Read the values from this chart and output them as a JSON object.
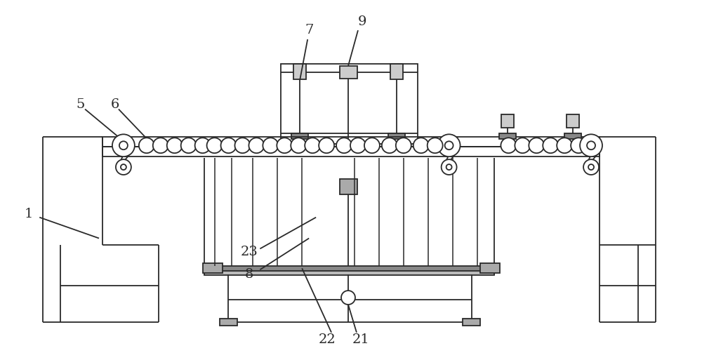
{
  "bg_color": "#ffffff",
  "line_color": "#2a2a2a",
  "lw": 1.3,
  "fig_width": 10.0,
  "fig_height": 5.03,
  "label_fs": 14
}
